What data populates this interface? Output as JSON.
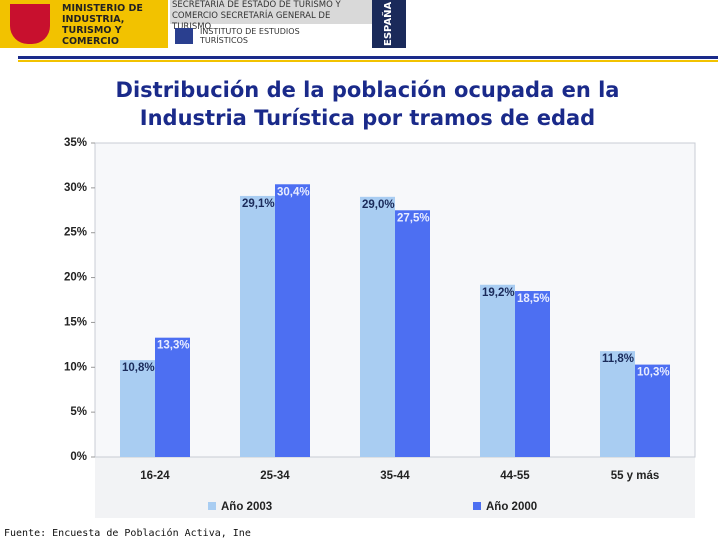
{
  "header": {
    "ministry": "MINISTERIO DE INDUSTRIA, TURISMO Y COMERCIO",
    "secretariats": "SECRETARÍA DE ESTADO DE TURISMO Y COMERCIO SECRETARÍA GENERAL DE TURISMO",
    "institute": "INSTITUTO DE ESTUDIOS TURÍSTICOS",
    "country": "ESPAÑA"
  },
  "source": "Fuente: Encuesta de Población Activa, Ine",
  "chart_data": {
    "type": "bar",
    "title": "Distribución de la población ocupada en la Industria Turística por tramos de edad",
    "categories": [
      "16-24",
      "25-34",
      "35-44",
      "44-55",
      "55 y más"
    ],
    "series": [
      {
        "name": "Año 2003",
        "color": "#a9cdf2",
        "values": [
          10.8,
          29.1,
          29.0,
          19.2,
          11.8
        ],
        "value_labels": [
          "10,8%",
          "29,1%",
          "29,0%",
          "19,2%",
          "11,8%"
        ]
      },
      {
        "name": "Año 2000",
        "color": "#4d6ff2",
        "values": [
          13.3,
          30.4,
          27.5,
          18.5,
          10.3
        ],
        "value_labels": [
          "13,3%",
          "30,4%",
          "27,5%",
          "18,5%",
          "10,3%"
        ]
      }
    ],
    "ylim": [
      0,
      35
    ],
    "yticks": [
      {
        "value": 0,
        "label": "0%"
      },
      {
        "value": 5,
        "label": "5%"
      },
      {
        "value": 10,
        "label": "10%"
      },
      {
        "value": 15,
        "label": "15%"
      },
      {
        "value": 20,
        "label": "20%"
      },
      {
        "value": 25,
        "label": "25%"
      },
      {
        "value": 30,
        "label": "30%"
      },
      {
        "value": 35,
        "label": "35%"
      }
    ],
    "grid": false,
    "legend": "bottom"
  }
}
